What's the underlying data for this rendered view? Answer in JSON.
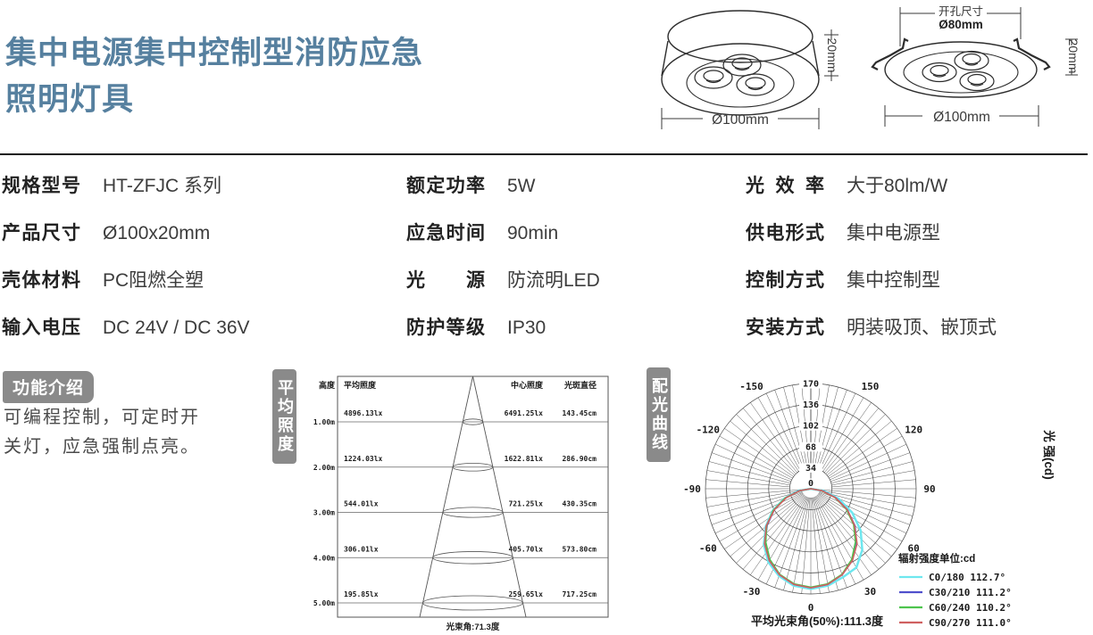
{
  "header": {
    "title_line1": "集中电源集中控制型消防应急",
    "title_line2": "照明灯具",
    "title_color": "#56809f"
  },
  "drawings": {
    "surface": {
      "height_label": "20mm",
      "diameter_label": "Ø100mm"
    },
    "recessed": {
      "cutout_caption": "开孔尺寸",
      "cutout_value": "Ø80mm",
      "height_label": "20mm",
      "diameter_label": "Ø100mm"
    }
  },
  "specs": {
    "columns": [
      {
        "rows": [
          {
            "label": "规格型号",
            "value": "HT-ZFJC 系列"
          },
          {
            "label": "产品尺寸",
            "value": "Ø100x20mm"
          },
          {
            "label": "壳体材料",
            "value": "PC阻燃全塑"
          },
          {
            "label": "输入电压",
            "value": "DC 24V / DC 36V"
          }
        ]
      },
      {
        "rows": [
          {
            "label": "额定功率",
            "value": "5W"
          },
          {
            "label": "应急时间",
            "value": "90min"
          },
          {
            "label": "光源",
            "value": "防流明LED"
          },
          {
            "label": "防护等级",
            "value": "IP30"
          }
        ]
      },
      {
        "rows": [
          {
            "label": "光效率",
            "value": "大于80lm/W"
          },
          {
            "label": "供电形式",
            "value": "集中电源型"
          },
          {
            "label": "控制方式",
            "value": "集中控制型"
          },
          {
            "label": "安装方式",
            "value": "明装吸顶、嵌顶式"
          }
        ]
      }
    ]
  },
  "features": {
    "badge": "功能介绍",
    "lines": [
      "可编程控制，可定时开",
      "关灯，应急强制点亮。"
    ]
  },
  "badges": {
    "avg_illuminance": "平均照度",
    "light_curve": "配光曲线"
  },
  "chart_data": [
    {
      "type": "table",
      "name": "平均照度锥形图",
      "columns": [
        "高度",
        "平均照度",
        "中心照度",
        "光斑直径"
      ],
      "rows": [
        [
          "1.00m",
          "4896.13lx",
          "6491.25lx",
          "143.45cm"
        ],
        [
          "2.00m",
          "1224.03lx",
          "1622.81lx",
          "286.90cm"
        ],
        [
          "3.00m",
          "544.01lx",
          "721.25lx",
          "430.35cm"
        ],
        [
          "4.00m",
          "306.01lx",
          "405.70lx",
          "573.80cm"
        ],
        [
          "5.00m",
          "195.85lx",
          "259.65lx",
          "717.25cm"
        ]
      ],
      "footer": "光束角:71.3度"
    },
    {
      "type": "line",
      "polar": true,
      "name": "配光曲线",
      "unit_label": "光 强(cd)",
      "legend_title": "辐射强度单位:cd",
      "caption": "平均光束角(50%):111.3度",
      "r_max": 170,
      "radial_ticks": [
        0,
        34,
        68,
        102,
        136,
        170
      ],
      "angle_labels": [
        -150,
        -120,
        -90,
        -60,
        -30,
        0,
        30,
        60,
        90,
        120,
        150
      ],
      "angles_deg": [
        -90,
        -80,
        -70,
        -60,
        -50,
        -40,
        -30,
        -20,
        -10,
        0,
        10,
        20,
        30,
        40,
        50,
        60,
        70,
        80,
        90
      ],
      "series": [
        {
          "name": "C0/180 112.7°",
          "color": "#6ee7ef",
          "values": [
            0,
            20,
            45,
            71,
            95,
            118,
            137,
            150,
            159,
            162,
            159,
            152,
            147,
            129,
            105,
            77,
            48,
            21,
            0
          ]
        },
        {
          "name": "C30/210 111.2°",
          "color": "#5050cc",
          "values": [
            0,
            19,
            43,
            68,
            92,
            115,
            134,
            148,
            157,
            160,
            157,
            148,
            134,
            115,
            93,
            68,
            43,
            19,
            0
          ]
        },
        {
          "name": "C60/240 110.2°",
          "color": "#4ec44e",
          "values": [
            0,
            18,
            44,
            70,
            93,
            113,
            132,
            147,
            156,
            159,
            156,
            147,
            132,
            112,
            90,
            66,
            41,
            17,
            0
          ]
        },
        {
          "name": "C90/270 111.0°",
          "color": "#cf6060",
          "values": [
            0,
            18,
            42,
            68,
            94,
            116,
            134,
            148,
            157,
            160,
            157,
            148,
            134,
            116,
            92,
            68,
            42,
            18,
            0
          ]
        }
      ]
    }
  ]
}
